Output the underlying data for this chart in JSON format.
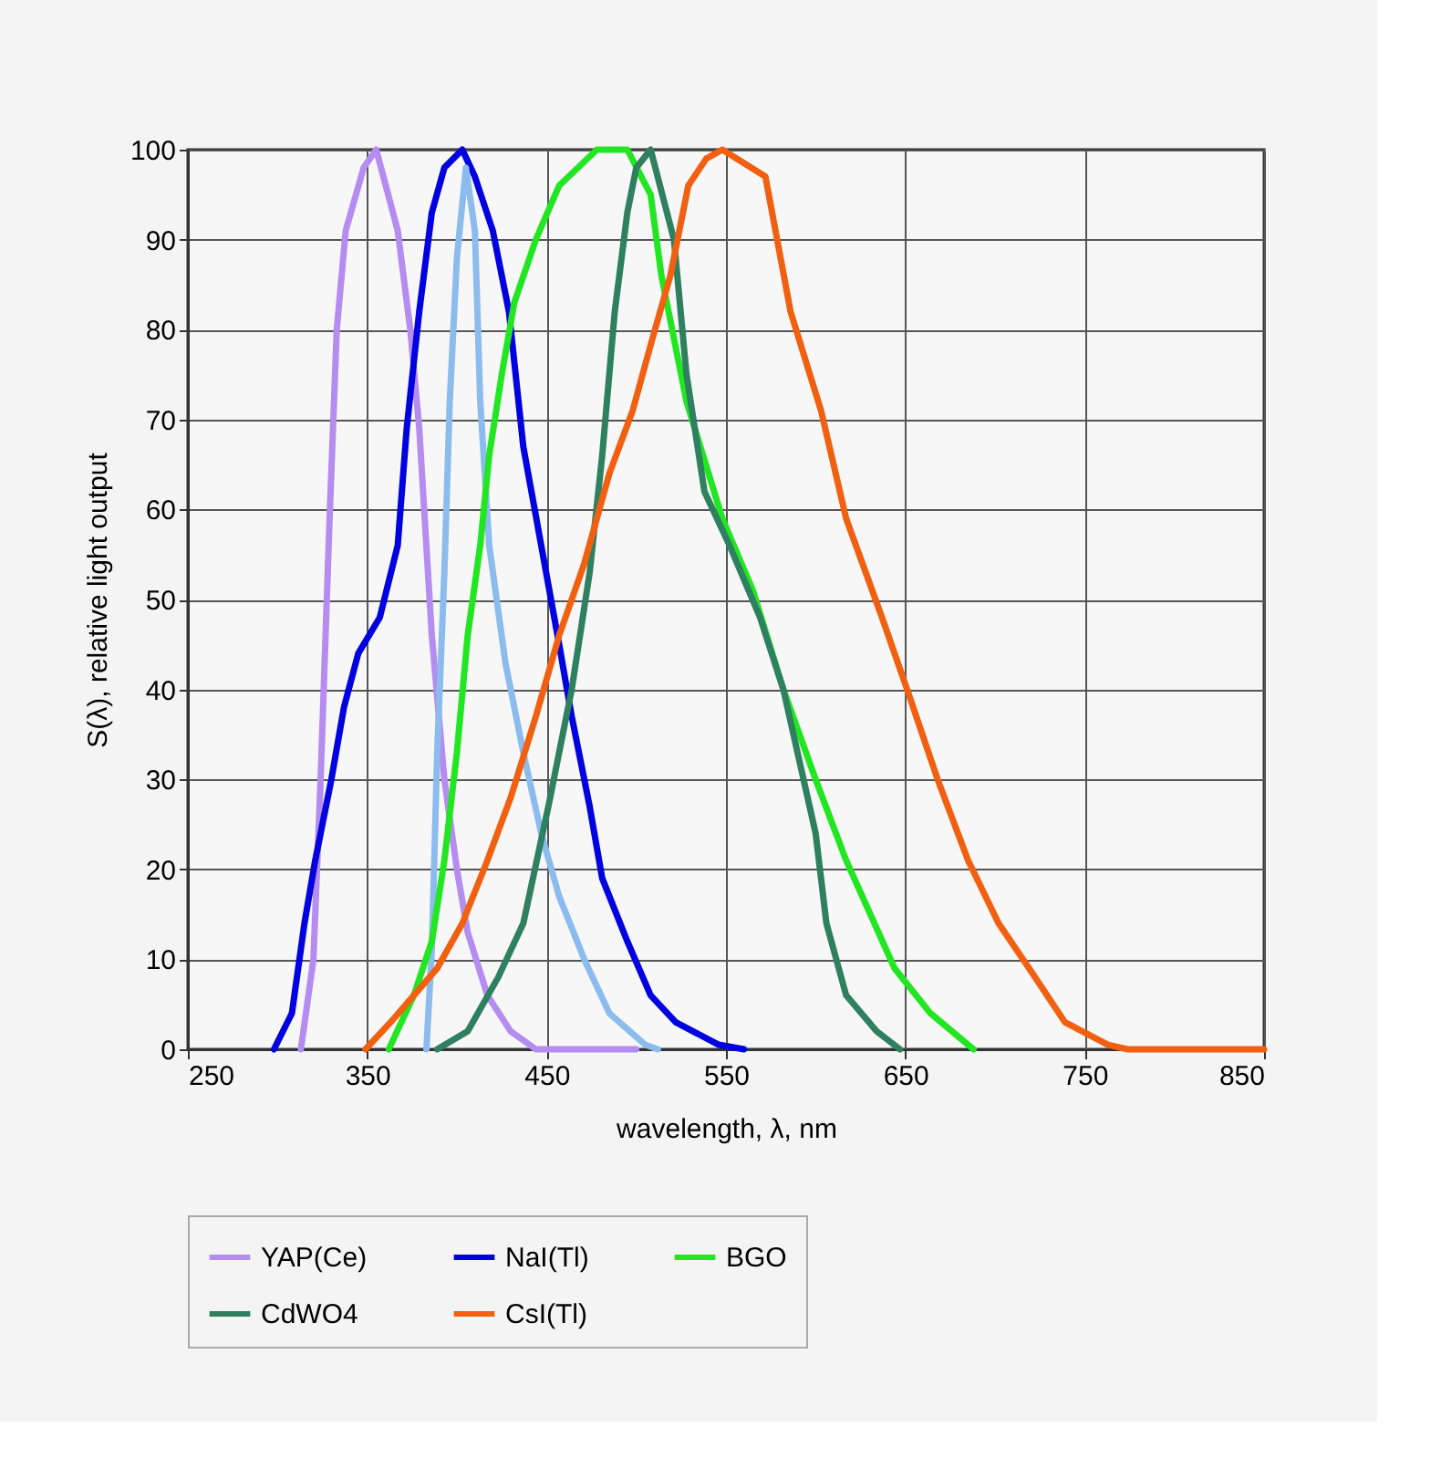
{
  "chart_data": {
    "type": "line",
    "xlabel": "wavelength, λ, nm",
    "ylabel": "S(λ), relative light output",
    "xlim": [
      250,
      850
    ],
    "ylim": [
      0,
      100
    ],
    "xticks": [
      250,
      350,
      450,
      550,
      650,
      750,
      850
    ],
    "yticks": [
      0,
      10,
      20,
      30,
      40,
      50,
      60,
      70,
      80,
      90,
      100
    ],
    "grid": true,
    "legend": "bottom",
    "marker": "none",
    "line_style": "solid",
    "series": [
      {
        "name": "YAP(Ce)",
        "color": "#b58cf0",
        "x": [
          313,
          320,
          324,
          329,
          333,
          338,
          348,
          355,
          367,
          374,
          379,
          386,
          393,
          400,
          406,
          417,
          430,
          444,
          500
        ],
        "values": [
          0,
          10,
          30,
          59,
          80,
          91,
          98,
          100,
          91,
          80,
          69,
          46,
          30,
          20,
          13,
          6,
          2,
          0,
          0
        ]
      },
      {
        "name": "NaI(Tl)",
        "color": "#0000e0",
        "x": [
          298,
          308,
          315,
          321,
          330,
          337,
          345,
          357,
          367,
          372,
          379,
          386,
          393,
          403,
          410,
          420,
          429,
          437,
          447,
          457,
          464,
          474,
          481,
          495,
          508,
          522,
          546,
          560
        ],
        "values": [
          0,
          4,
          14,
          21,
          30,
          38,
          44,
          48,
          56,
          69,
          82,
          93,
          98,
          100,
          97,
          91,
          82,
          67,
          56,
          45,
          37,
          27,
          19,
          12,
          6,
          3,
          0.5,
          0
        ]
      },
      {
        "name": null,
        "color": "#8cbcee",
        "x": [
          383,
          386,
          389,
          393,
          396,
          400,
          405,
          410,
          413,
          418,
          427,
          437,
          447,
          457,
          471,
          485,
          505,
          512
        ],
        "values": [
          0,
          11,
          33,
          53,
          72,
          88,
          98,
          91,
          72,
          56,
          43,
          33,
          24,
          17,
          10,
          4,
          0.5,
          0
        ]
      },
      {
        "name": "BGO",
        "color": "#22e622",
        "x": [
          362,
          376,
          386,
          393,
          400,
          406,
          413,
          418,
          425,
          432,
          444,
          457,
          478,
          495,
          508,
          514,
          528,
          548,
          565,
          582,
          600,
          617,
          644,
          664,
          688
        ],
        "values": [
          0,
          6,
          12,
          21,
          33,
          46,
          56,
          66,
          75,
          83,
          90,
          96,
          100,
          100,
          95,
          86,
          72,
          59,
          51,
          40,
          30,
          21,
          9,
          4,
          0
        ]
      },
      {
        "name": "CdWO4",
        "color": "#2e8060",
        "x": [
          389,
          406,
          423,
          437,
          451,
          464,
          474,
          481,
          488,
          495,
          500,
          508,
          521,
          528,
          538,
          552,
          569,
          582,
          600,
          606,
          617,
          634,
          647
        ],
        "values": [
          0,
          2,
          8,
          14,
          27,
          40,
          53,
          66,
          82,
          93,
          98,
          100,
          90,
          75,
          62,
          56,
          48,
          40,
          24,
          14,
          6,
          2,
          0
        ]
      },
      {
        "name": "CsI(Tl)",
        "color": "#f06010",
        "x": [
          349,
          363,
          376,
          389,
          403,
          417,
          430,
          444,
          457,
          471,
          485,
          498,
          509,
          519,
          529,
          539,
          548,
          572,
          586,
          603,
          617,
          637,
          651,
          668,
          685,
          702,
          719,
          739,
          763,
          774,
          850
        ],
        "values": [
          0,
          3,
          6,
          9,
          14,
          21,
          28,
          37,
          46,
          54,
          64,
          71,
          79,
          86,
          96,
          99,
          100,
          97,
          82,
          71,
          59,
          48,
          40,
          30,
          21,
          14,
          9,
          3,
          0.5,
          0,
          0
        ]
      }
    ]
  }
}
